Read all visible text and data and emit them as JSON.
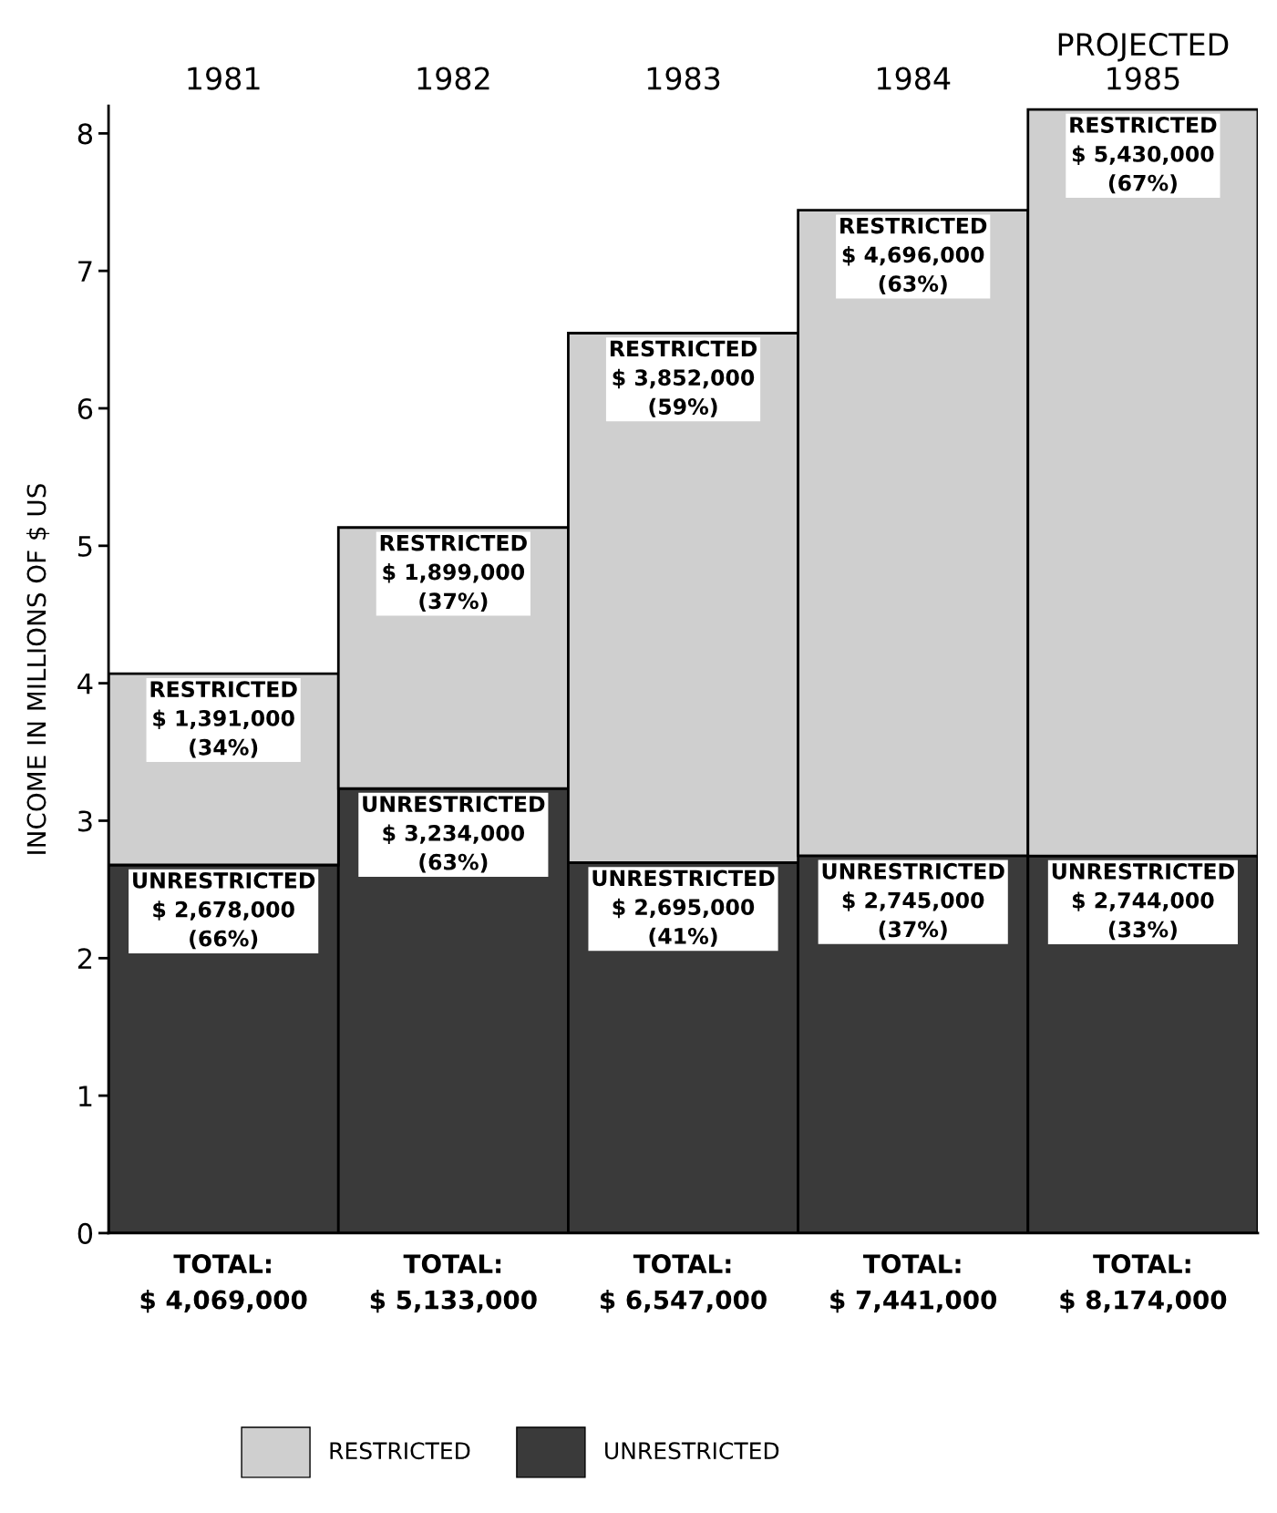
{
  "chart_data": {
    "type": "bar",
    "stacked": true,
    "ylabel": "INCOME IN MILLIONS OF $ US",
    "categories": [
      "1981",
      "1982",
      "1983",
      "1984",
      "PROJECTED\n1985"
    ],
    "series": [
      {
        "name": "UNRESTRICTED",
        "color": "#3a3a3a",
        "values": [
          2.678,
          3.234,
          2.695,
          2.745,
          2.744
        ]
      },
      {
        "name": "RESTRICTED",
        "color": "#cfcfcf",
        "values": [
          1.391,
          1.899,
          3.852,
          4.696,
          5.43
        ]
      }
    ],
    "annotations": [
      {
        "text": "UNRESTRICTED\n$ 2,678,000\n(66%)",
        "x": "1981",
        "y": 2.678
      },
      {
        "text": "UNRESTRICTED\n$ 3,234,000\n(63%)",
        "x": "1982",
        "y": 3.234
      },
      {
        "text": "UNRESTRICTED\n$ 2,695,000\n(41%)",
        "x": "1983",
        "y": 2.695
      },
      {
        "text": "UNRESTRICTED\n$ 2,745,000\n(37%)",
        "x": "1984",
        "y": 2.745
      },
      {
        "text": "UNRESTRICTED\n$ 2,744,000\n(33%)",
        "x": "PROJECTED\n1985",
        "y": 2.744
      },
      {
        "text": "RESTRICTED\n$ 1,391,000\n(34%)",
        "x": "1981",
        "y": 4.069
      },
      {
        "text": "RESTRICTED\n$ 1,899,000\n(37%)",
        "x": "1982",
        "y": 5.133
      },
      {
        "text": "RESTRICTED\n$ 3,852,000\n(59%)",
        "x": "1983",
        "y": 6.547
      },
      {
        "text": "RESTRICTED\n$ 4,696,000\n(63%)",
        "x": "1984",
        "y": 7.441
      },
      {
        "text": "RESTRICTED\n$ 5,430,000\n(67%)",
        "x": "PROJECTED\n1985",
        "y": 8.174
      }
    ],
    "totals": [
      "TOTAL:\n$ 4,069,000",
      "TOTAL:\n$ 5,133,000",
      "TOTAL:\n$ 6,547,000",
      "TOTAL:\n$ 7,441,000",
      "TOTAL:\n$ 8,174,000"
    ],
    "ylim": [
      0,
      8.2
    ],
    "yticks": [
      0,
      1,
      2,
      3,
      4,
      5,
      6,
      7,
      8
    ],
    "grid": false,
    "legend": "bottom"
  }
}
